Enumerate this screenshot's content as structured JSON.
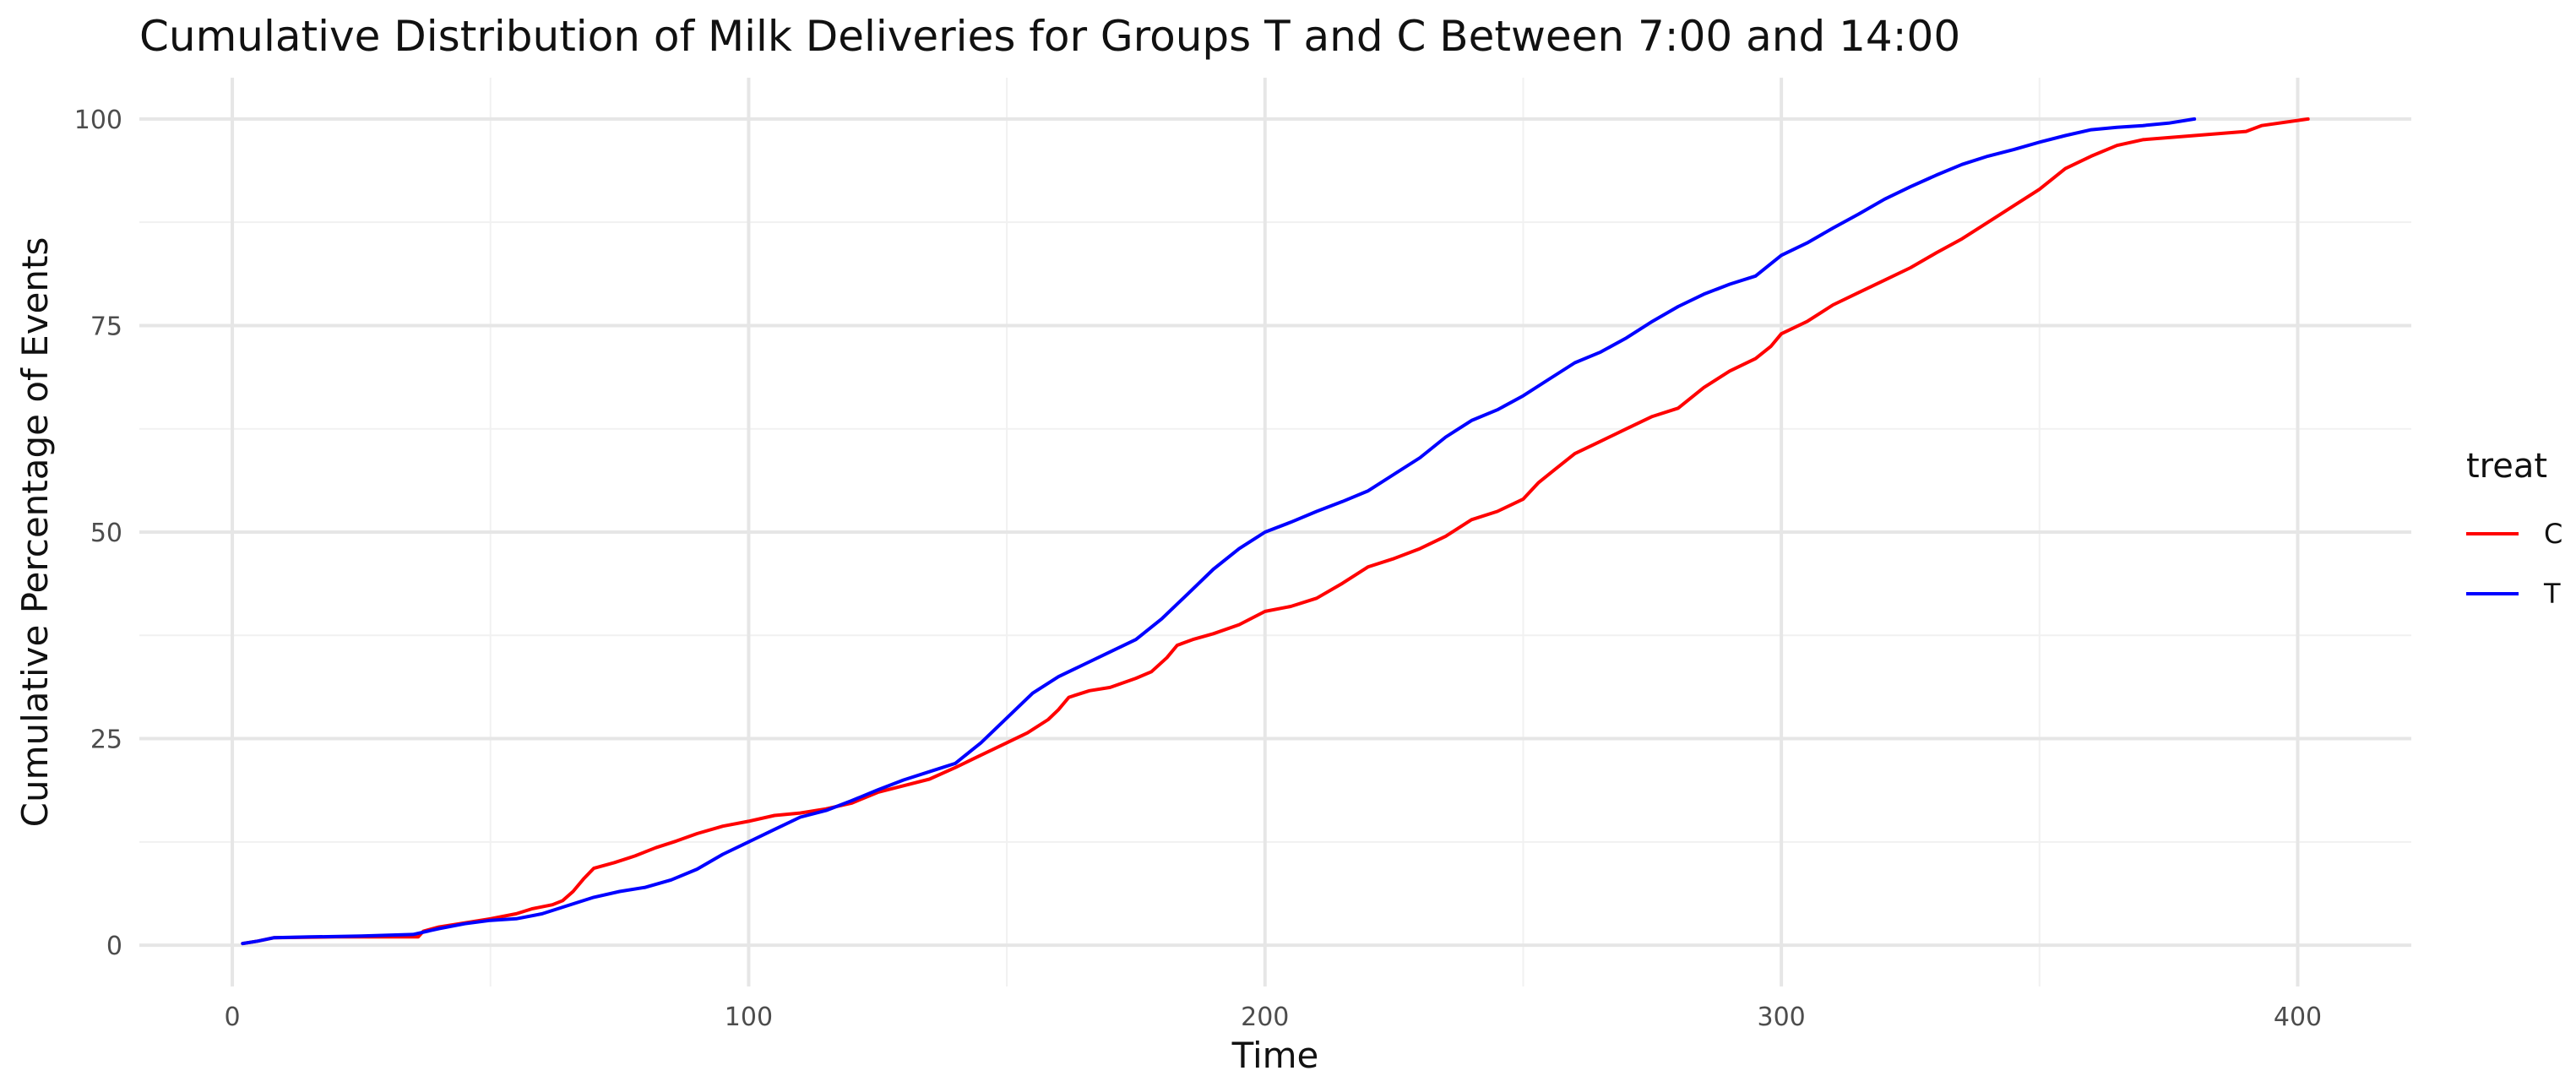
{
  "chart_data": {
    "type": "line",
    "title": "Cumulative Distribution of Milk Deliveries for Groups T and C Between 7:00 and 14:00",
    "xlabel": "Time",
    "ylabel": "Cumulative Percentage of Events",
    "xlim": [
      -18,
      422
    ],
    "ylim": [
      -5,
      105
    ],
    "x_ticks": [
      0,
      100,
      200,
      300,
      400
    ],
    "x_tick_labels": [
      "0",
      "100",
      "200",
      "300",
      "400"
    ],
    "x_minor_ticks": [
      50,
      150,
      250,
      350
    ],
    "y_ticks": [
      0,
      25,
      50,
      75,
      100
    ],
    "y_tick_labels": [
      "0",
      "25",
      "50",
      "75",
      "100"
    ],
    "y_minor_ticks": [
      12.5,
      37.5,
      62.5,
      87.5
    ],
    "grid": true,
    "legend": {
      "title": "treat",
      "position": "right"
    },
    "series": [
      {
        "name": "C",
        "color": "#ff0000",
        "points": [
          [
            2,
            0.2
          ],
          [
            5,
            0.5
          ],
          [
            8,
            0.9
          ],
          [
            20,
            1.0
          ],
          [
            30,
            1.0
          ],
          [
            36,
            1.0
          ],
          [
            37,
            1.7
          ],
          [
            40,
            2.2
          ],
          [
            45,
            2.7
          ],
          [
            50,
            3.2
          ],
          [
            55,
            3.8
          ],
          [
            58,
            4.4
          ],
          [
            62,
            4.9
          ],
          [
            64,
            5.4
          ],
          [
            66,
            6.5
          ],
          [
            68,
            8.0
          ],
          [
            70,
            9.3
          ],
          [
            74,
            10.0
          ],
          [
            78,
            10.8
          ],
          [
            82,
            11.8
          ],
          [
            86,
            12.6
          ],
          [
            90,
            13.5
          ],
          [
            95,
            14.4
          ],
          [
            100,
            15.0
          ],
          [
            105,
            15.7
          ],
          [
            110,
            16.0
          ],
          [
            115,
            16.5
          ],
          [
            120,
            17.2
          ],
          [
            125,
            18.5
          ],
          [
            130,
            19.3
          ],
          [
            135,
            20.1
          ],
          [
            140,
            21.5
          ],
          [
            145,
            23.0
          ],
          [
            150,
            24.5
          ],
          [
            154,
            25.7
          ],
          [
            158,
            27.3
          ],
          [
            160,
            28.5
          ],
          [
            162,
            30.0
          ],
          [
            166,
            30.8
          ],
          [
            170,
            31.2
          ],
          [
            175,
            32.3
          ],
          [
            178,
            33.1
          ],
          [
            181,
            34.8
          ],
          [
            183,
            36.3
          ],
          [
            186,
            37.0
          ],
          [
            190,
            37.7
          ],
          [
            195,
            38.8
          ],
          [
            200,
            40.4
          ],
          [
            205,
            41.0
          ],
          [
            210,
            42.0
          ],
          [
            215,
            43.8
          ],
          [
            220,
            45.8
          ],
          [
            225,
            46.8
          ],
          [
            230,
            48.0
          ],
          [
            235,
            49.5
          ],
          [
            240,
            51.5
          ],
          [
            245,
            52.5
          ],
          [
            250,
            54.0
          ],
          [
            253,
            56.0
          ],
          [
            256,
            57.5
          ],
          [
            260,
            59.5
          ],
          [
            265,
            61.0
          ],
          [
            270,
            62.5
          ],
          [
            275,
            64.0
          ],
          [
            280,
            65.0
          ],
          [
            285,
            67.5
          ],
          [
            290,
            69.5
          ],
          [
            295,
            71.0
          ],
          [
            298,
            72.5
          ],
          [
            300,
            74.0
          ],
          [
            305,
            75.5
          ],
          [
            310,
            77.5
          ],
          [
            315,
            79.0
          ],
          [
            320,
            80.5
          ],
          [
            325,
            82.0
          ],
          [
            330,
            83.8
          ],
          [
            335,
            85.5
          ],
          [
            340,
            87.5
          ],
          [
            345,
            89.5
          ],
          [
            350,
            91.5
          ],
          [
            355,
            94.0
          ],
          [
            360,
            95.5
          ],
          [
            365,
            96.8
          ],
          [
            370,
            97.5
          ],
          [
            380,
            98.0
          ],
          [
            390,
            98.5
          ],
          [
            393,
            99.2
          ],
          [
            402,
            100.0
          ]
        ]
      },
      {
        "name": "T",
        "color": "#0000ff",
        "points": [
          [
            2,
            0.2
          ],
          [
            5,
            0.5
          ],
          [
            8,
            0.9
          ],
          [
            15,
            1.0
          ],
          [
            25,
            1.1
          ],
          [
            35,
            1.3
          ],
          [
            40,
            2.0
          ],
          [
            45,
            2.6
          ],
          [
            50,
            3.0
          ],
          [
            55,
            3.2
          ],
          [
            60,
            3.8
          ],
          [
            65,
            4.8
          ],
          [
            70,
            5.8
          ],
          [
            75,
            6.5
          ],
          [
            80,
            7.0
          ],
          [
            85,
            7.9
          ],
          [
            90,
            9.2
          ],
          [
            95,
            11.0
          ],
          [
            100,
            12.5
          ],
          [
            105,
            14.0
          ],
          [
            110,
            15.5
          ],
          [
            115,
            16.3
          ],
          [
            120,
            17.5
          ],
          [
            125,
            18.8
          ],
          [
            130,
            20.0
          ],
          [
            135,
            21.0
          ],
          [
            140,
            22.0
          ],
          [
            145,
            24.5
          ],
          [
            150,
            27.5
          ],
          [
            155,
            30.5
          ],
          [
            160,
            32.5
          ],
          [
            165,
            34.0
          ],
          [
            170,
            35.5
          ],
          [
            175,
            37.0
          ],
          [
            180,
            39.5
          ],
          [
            185,
            42.5
          ],
          [
            190,
            45.5
          ],
          [
            195,
            48.0
          ],
          [
            200,
            50.0
          ],
          [
            205,
            51.2
          ],
          [
            210,
            52.5
          ],
          [
            215,
            53.7
          ],
          [
            220,
            55.0
          ],
          [
            225,
            57.0
          ],
          [
            230,
            59.0
          ],
          [
            235,
            61.5
          ],
          [
            240,
            63.5
          ],
          [
            245,
            64.8
          ],
          [
            250,
            66.5
          ],
          [
            255,
            68.5
          ],
          [
            260,
            70.5
          ],
          [
            265,
            71.8
          ],
          [
            270,
            73.5
          ],
          [
            275,
            75.5
          ],
          [
            280,
            77.3
          ],
          [
            285,
            78.8
          ],
          [
            290,
            80.0
          ],
          [
            295,
            81.0
          ],
          [
            300,
            83.5
          ],
          [
            305,
            85.0
          ],
          [
            310,
            86.8
          ],
          [
            315,
            88.5
          ],
          [
            320,
            90.3
          ],
          [
            325,
            91.8
          ],
          [
            330,
            93.2
          ],
          [
            335,
            94.5
          ],
          [
            340,
            95.5
          ],
          [
            345,
            96.3
          ],
          [
            350,
            97.2
          ],
          [
            355,
            98.0
          ],
          [
            360,
            98.7
          ],
          [
            365,
            99.0
          ],
          [
            370,
            99.2
          ],
          [
            375,
            99.5
          ],
          [
            380,
            100.0
          ]
        ]
      }
    ]
  }
}
